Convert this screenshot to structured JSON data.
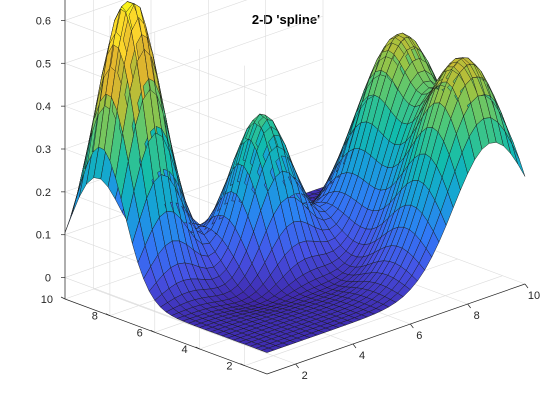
{
  "chart_data": {
    "type": "surface",
    "title": "2-D 'spline'",
    "xlabel": "",
    "ylabel": "",
    "zlabel": "",
    "xlim": [
      1,
      10
    ],
    "ylim": [
      1,
      10
    ],
    "zlim": [
      -0.05,
      0.65
    ],
    "x_ticks": [
      2,
      4,
      6,
      8,
      10
    ],
    "y_ticks": [
      2,
      4,
      6,
      8,
      10
    ],
    "z_ticks": [
      0,
      0.1,
      0.2,
      0.3,
      0.4,
      0.5,
      0.6
    ],
    "x_tick_labels": [
      "2",
      "4",
      "6",
      "8",
      "10"
    ],
    "y_tick_labels": [
      "2",
      "4",
      "6",
      "8",
      "10"
    ],
    "z_tick_labels": [
      "0",
      "0.1",
      "0.2",
      "0.3",
      "0.4",
      "0.5",
      "0.6"
    ],
    "grid": true,
    "colormap": "parula",
    "colormap_stops": [
      "#3e26a8",
      "#4653e6",
      "#2f7cf7",
      "#16a2d8",
      "#10bcae",
      "#4ec879",
      "#a2c33f",
      "#e1b42d",
      "#fbd42c",
      "#f9fb15"
    ],
    "peaks": [
      {
        "x": 2.0,
        "y": 8.4,
        "z": 0.67
      },
      {
        "x": 5.2,
        "y": 6.6,
        "z": 0.35
      },
      {
        "x": 8.8,
        "y": 2.2,
        "z": 0.47
      },
      {
        "x": 9.2,
        "y": 5.6,
        "z": 0.45
      }
    ],
    "troughs": [
      {
        "x": 3.8,
        "y": 5.0,
        "z": -0.02
      },
      {
        "x": 6.5,
        "y": 3.8,
        "z": -0.02
      }
    ]
  }
}
